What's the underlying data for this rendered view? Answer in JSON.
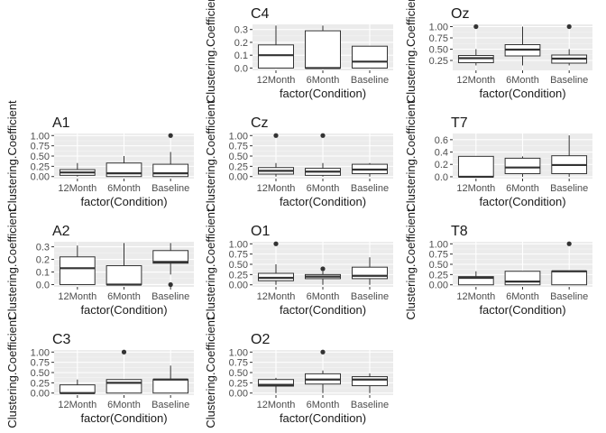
{
  "chart_data": [
    {
      "type": "box",
      "title": "C4",
      "xlabel": "factor(Condition)",
      "ylabel": "Clustering.Coefficient",
      "categories": [
        "12Month",
        "6Month",
        "Baseline"
      ],
      "yticks": [
        "0.0",
        "0.1",
        "0.2",
        "0.3"
      ],
      "ylim": [
        -0.018,
        0.34
      ],
      "boxes": [
        {
          "low": 0.0,
          "q1": 0.0,
          "median": 0.1,
          "q3": 0.18,
          "high": 0.33,
          "outliers": []
        },
        {
          "low": 0.0,
          "q1": 0.0,
          "median": 0.0,
          "q3": 0.29,
          "high": 0.33,
          "outliers": []
        },
        {
          "low": 0.0,
          "q1": 0.0,
          "median": 0.05,
          "q3": 0.17,
          "high": 0.17,
          "outliers": []
        }
      ]
    },
    {
      "type": "box",
      "title": "Oz",
      "xlabel": "factor(Condition)",
      "ylabel": "Clustering.Coefficient",
      "categories": [
        "12Month",
        "6Month",
        "Baseline"
      ],
      "yticks": [
        "0.25",
        "0.50",
        "0.75",
        "1.00"
      ],
      "ylim": [
        0.03,
        1.05
      ],
      "boxes": [
        {
          "low": 0.14,
          "q1": 0.2,
          "median": 0.3,
          "q3": 0.36,
          "high": 0.5,
          "outliers": [
            1.0
          ]
        },
        {
          "low": 0.14,
          "q1": 0.35,
          "median": 0.49,
          "q3": 0.6,
          "high": 1.0,
          "outliers": []
        },
        {
          "low": 0.14,
          "q1": 0.19,
          "median": 0.29,
          "q3": 0.37,
          "high": 0.5,
          "outliers": [
            1.0
          ]
        }
      ]
    },
    {
      "type": "box",
      "title": "A1",
      "xlabel": "factor(Condition)",
      "ylabel": "Clustering.Coefficient",
      "categories": [
        "12Month",
        "6Month",
        "Baseline"
      ],
      "yticks": [
        "0.00",
        "0.25",
        "0.50",
        "0.75",
        "1.00"
      ],
      "ylim": [
        -0.05,
        1.05
      ],
      "boxes": [
        {
          "low": 0.0,
          "q1": 0.03,
          "median": 0.1,
          "q3": 0.17,
          "high": 0.33,
          "outliers": []
        },
        {
          "low": 0.0,
          "q1": 0.0,
          "median": 0.08,
          "q3": 0.33,
          "high": 0.5,
          "outliers": []
        },
        {
          "low": 0.0,
          "q1": 0.0,
          "median": 0.08,
          "q3": 0.3,
          "high": 0.6,
          "outliers": [
            1.0
          ]
        }
      ]
    },
    {
      "type": "box",
      "title": "Cz",
      "xlabel": "factor(Condition)",
      "ylabel": "Clustering.Coefficient",
      "categories": [
        "12Month",
        "6Month",
        "Baseline"
      ],
      "yticks": [
        "0.00",
        "0.25",
        "0.50",
        "0.75",
        "1.00"
      ],
      "ylim": [
        -0.05,
        1.05
      ],
      "boxes": [
        {
          "low": 0.0,
          "q1": 0.06,
          "median": 0.14,
          "q3": 0.22,
          "high": 0.33,
          "outliers": [
            1.0
          ]
        },
        {
          "low": 0.0,
          "q1": 0.03,
          "median": 0.12,
          "q3": 0.2,
          "high": 0.33,
          "outliers": [
            1.0
          ]
        },
        {
          "low": 0.0,
          "q1": 0.07,
          "median": 0.17,
          "q3": 0.3,
          "high": 0.33,
          "outliers": []
        }
      ]
    },
    {
      "type": "box",
      "title": "T7",
      "xlabel": "factor(Condition)",
      "ylabel": "Clustering.Coefficient",
      "categories": [
        "12Month",
        "6Month",
        "Baseline"
      ],
      "yticks": [
        "0.0",
        "0.2",
        "0.4",
        "0.6"
      ],
      "ylim": [
        -0.03,
        0.7
      ],
      "boxes": [
        {
          "low": 0.0,
          "q1": 0.0,
          "median": 0.0,
          "q3": 0.33,
          "high": 0.33,
          "outliers": []
        },
        {
          "low": 0.0,
          "q1": 0.05,
          "median": 0.15,
          "q3": 0.3,
          "high": 0.33,
          "outliers": []
        },
        {
          "low": 0.0,
          "q1": 0.05,
          "median": 0.19,
          "q3": 0.34,
          "high": 0.67,
          "outliers": []
        }
      ]
    },
    {
      "type": "box",
      "title": "A2",
      "xlabel": "factor(Condition)",
      "ylabel": "Clustering.Coefficient",
      "categories": [
        "12Month",
        "6Month",
        "Baseline"
      ],
      "yticks": [
        "0.0",
        "0.1",
        "0.2",
        "0.3"
      ],
      "ylim": [
        -0.018,
        0.34
      ],
      "boxes": [
        {
          "low": 0.0,
          "q1": 0.0,
          "median": 0.13,
          "q3": 0.22,
          "high": 0.31,
          "outliers": []
        },
        {
          "low": 0.0,
          "q1": 0.0,
          "median": 0.0,
          "q3": 0.15,
          "high": 0.33,
          "outliers": []
        },
        {
          "low": 0.08,
          "q1": 0.17,
          "median": 0.18,
          "q3": 0.27,
          "high": 0.33,
          "outliers": [
            0.0
          ]
        }
      ]
    },
    {
      "type": "box",
      "title": "O1",
      "xlabel": "factor(Condition)",
      "ylabel": "Clustering.Coefficient",
      "categories": [
        "12Month",
        "6Month",
        "Baseline"
      ],
      "yticks": [
        "0.00",
        "0.25",
        "0.50",
        "0.75",
        "1.00"
      ],
      "ylim": [
        -0.05,
        1.05
      ],
      "boxes": [
        {
          "low": 0.0,
          "q1": 0.1,
          "median": 0.17,
          "q3": 0.28,
          "high": 0.5,
          "outliers": [
            1.0
          ]
        },
        {
          "low": 0.0,
          "q1": 0.15,
          "median": 0.2,
          "q3": 0.25,
          "high": 0.33,
          "outliers": [
            0.39
          ]
        },
        {
          "low": 0.0,
          "q1": 0.15,
          "median": 0.22,
          "q3": 0.43,
          "high": 0.67,
          "outliers": []
        }
      ]
    },
    {
      "type": "box",
      "title": "T8",
      "xlabel": "factor(Condition)",
      "ylabel": "Clustering.Coefficient",
      "categories": [
        "12Month",
        "6Month",
        "Baseline"
      ],
      "yticks": [
        "0.00",
        "0.25",
        "0.50",
        "0.75",
        "1.00"
      ],
      "ylim": [
        -0.05,
        1.05
      ],
      "boxes": [
        {
          "low": 0.0,
          "q1": 0.0,
          "median": 0.17,
          "q3": 0.2,
          "high": 0.33,
          "outliers": []
        },
        {
          "low": 0.0,
          "q1": 0.0,
          "median": 0.08,
          "q3": 0.33,
          "high": 0.33,
          "outliers": []
        },
        {
          "low": 0.0,
          "q1": 0.0,
          "median": 0.33,
          "q3": 0.33,
          "high": 0.33,
          "outliers": [
            1.0
          ]
        }
      ]
    },
    {
      "type": "box",
      "title": "C3",
      "xlabel": "factor(Condition)",
      "ylabel": "Clustering.Coefficient",
      "categories": [
        "12Month",
        "6Month",
        "Baseline"
      ],
      "yticks": [
        "0.00",
        "0.25",
        "0.50",
        "0.75",
        "1.00"
      ],
      "ylim": [
        -0.05,
        1.05
      ],
      "boxes": [
        {
          "low": 0.0,
          "q1": 0.0,
          "median": 0.0,
          "q3": 0.2,
          "high": 0.33,
          "outliers": []
        },
        {
          "low": 0.0,
          "q1": 0.0,
          "median": 0.25,
          "q3": 0.33,
          "high": 0.33,
          "outliers": [
            1.0
          ]
        },
        {
          "low": 0.0,
          "q1": 0.0,
          "median": 0.33,
          "q3": 0.33,
          "high": 0.67,
          "outliers": []
        }
      ]
    },
    {
      "type": "box",
      "title": "O2",
      "xlabel": "factor(Condition)",
      "ylabel": "Clustering.Coefficient",
      "categories": [
        "12Month",
        "6Month",
        "Baseline"
      ],
      "yticks": [
        "0.00",
        "0.25",
        "0.50",
        "0.75",
        "1.00"
      ],
      "ylim": [
        -0.05,
        1.05
      ],
      "boxes": [
        {
          "low": 0.0,
          "q1": 0.17,
          "median": 0.2,
          "q3": 0.33,
          "high": 0.37,
          "outliers": []
        },
        {
          "low": 0.0,
          "q1": 0.22,
          "median": 0.33,
          "q3": 0.47,
          "high": 0.55,
          "outliers": [
            1.0
          ]
        },
        {
          "low": 0.0,
          "q1": 0.18,
          "median": 0.33,
          "q3": 0.4,
          "high": 0.48,
          "outliers": []
        }
      ]
    }
  ]
}
